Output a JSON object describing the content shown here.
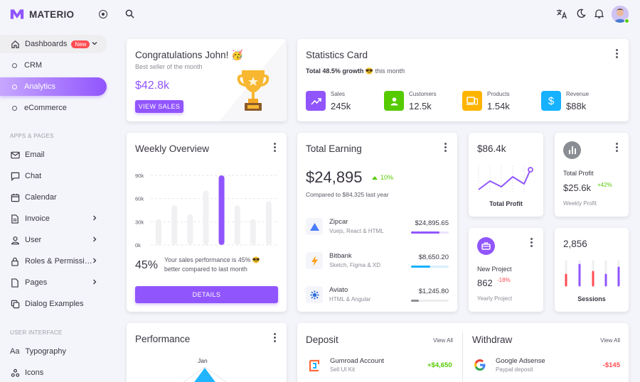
{
  "brand": {
    "name": "MATERIO",
    "accent": "#9155fd"
  },
  "sidebar": {
    "dashboards": {
      "label": "Dashboards",
      "badge": "New"
    },
    "sub": [
      {
        "label": "CRM"
      },
      {
        "label": "Analytics"
      },
      {
        "label": "eCommerce"
      }
    ],
    "section_apps": "APPS & PAGES",
    "apps": [
      {
        "label": "Email",
        "icon": "mail-icon"
      },
      {
        "label": "Chat",
        "icon": "chat-icon"
      },
      {
        "label": "Calendar",
        "icon": "calendar-icon"
      },
      {
        "label": "Invoice",
        "icon": "invoice-icon"
      },
      {
        "label": "User",
        "icon": "user-icon"
      },
      {
        "label": "Roles & Permissi…",
        "icon": "lock-icon"
      },
      {
        "label": "Pages",
        "icon": "pages-icon"
      },
      {
        "label": "Dialog Examples",
        "icon": "dialog-icon"
      }
    ],
    "section_ui": "USER INTERFACE",
    "ui": [
      {
        "label": "Typography",
        "icon": "typography-icon",
        "glyph": "Aa"
      },
      {
        "label": "Icons",
        "icon": "icons-icon"
      }
    ]
  },
  "congrats": {
    "title": "Congratulations John! 🥳",
    "subtitle": "Best seller of the month",
    "amount": "$42.8k",
    "button": "VIEW SALES"
  },
  "stats": {
    "title": "Statistics Card",
    "growth": "Total 48.5% growth",
    "emoji": "😎",
    "suffix": "this month",
    "items": [
      {
        "label": "Sales",
        "value": "245k",
        "color": "#9155fd",
        "icon": "trending-up-icon"
      },
      {
        "label": "Customers",
        "value": "12.5k",
        "color": "#56ca00",
        "icon": "account-icon"
      },
      {
        "label": "Products",
        "value": "1.54k",
        "color": "#ffb400",
        "icon": "cellphone-link-icon"
      },
      {
        "label": "Revenue",
        "value": "$88k",
        "color": "#16b1ff",
        "icon": "dollar-icon"
      }
    ]
  },
  "weekly": {
    "title": "Weekly Overview",
    "yticks": [
      "90k",
      "60k",
      "30k",
      "0k"
    ],
    "percent": "45%",
    "note": "Your sales performance is 45% 😎 better compared to last month",
    "button": "DETAILS"
  },
  "chart_data": {
    "type": "bar",
    "categories": [
      "1",
      "2",
      "3",
      "4",
      "5",
      "6",
      "7",
      "8"
    ],
    "values": [
      37,
      57,
      44,
      78,
      100,
      57,
      37,
      63
    ],
    "ylim": [
      0,
      100
    ],
    "highlight_index": 4,
    "colors": {
      "normal": "#f1f0f2",
      "highlight": "#9155fd"
    }
  },
  "earning": {
    "title": "Total Earning",
    "amount": "$24,895",
    "change": "10%",
    "compare": "Compared to $84,325 last year",
    "items": [
      {
        "name": "Zipcar",
        "sub": "Vuejs, React & HTML",
        "amount": "$24,895.65",
        "progress": 0.75,
        "color": "#9155fd",
        "bg": "#ebe2fe"
      },
      {
        "name": "Bitbank",
        "sub": "Sketch, Figma & XD",
        "amount": "$8,650.20",
        "progress": 0.5,
        "color": "#16b1ff",
        "bg": "#d8efff"
      },
      {
        "name": "Aviato",
        "sub": "HTML & Angular",
        "amount": "$1,245.80",
        "progress": 0.2,
        "color": "#8a8d93",
        "bg": "#ececee"
      }
    ]
  },
  "profit_line": {
    "value": "$86.4k",
    "label": "Total Profit"
  },
  "total_profit": {
    "label": "Total Profit",
    "value": "$25.6k",
    "change": "+42%",
    "sub": "Weekly Profit"
  },
  "new_project": {
    "label": "New Project",
    "value": "862",
    "change": "-18%",
    "sub": "Yearly Project"
  },
  "sessions": {
    "value": "2,856",
    "label": "Sessions"
  },
  "performance": {
    "title": "Performance",
    "axis_label": "Jan"
  },
  "deposit": {
    "title": "Deposit",
    "link": "View All",
    "item": {
      "name": "Gumroad Account",
      "sub": "Sell UI Kit",
      "amount": "+$4,650"
    }
  },
  "withdraw": {
    "title": "Withdraw",
    "link": "View All",
    "item": {
      "name": "Google Adsense",
      "sub": "Paypal deposit",
      "amount": "-$145"
    }
  }
}
